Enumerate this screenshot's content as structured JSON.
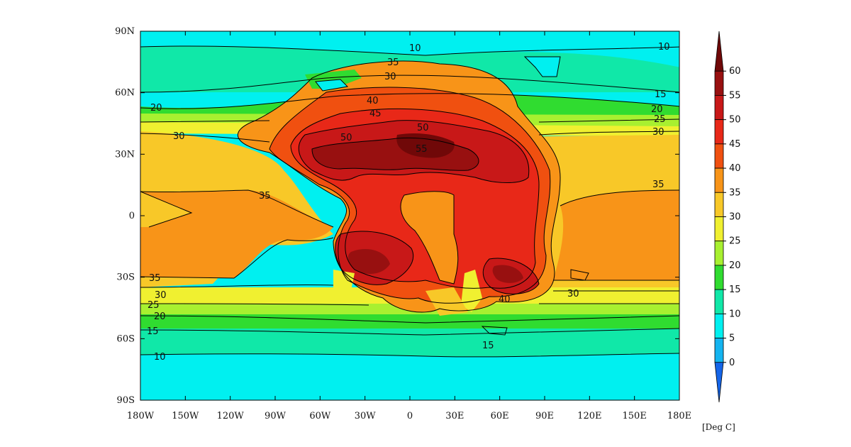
{
  "map": {
    "lat_labels": [
      "90N",
      "60N",
      "30N",
      "0",
      "30S",
      "60S",
      "90S"
    ],
    "lon_labels": [
      "180W",
      "150W",
      "120W",
      "90W",
      "60W",
      "30W",
      "0",
      "30E",
      "60E",
      "90E",
      "120E",
      "150E",
      "180E"
    ],
    "contour_labels": [
      "10",
      "10",
      "10",
      "15",
      "15",
      "15",
      "20",
      "20",
      "20",
      "25",
      "25",
      "30",
      "30",
      "30",
      "30",
      "30",
      "35",
      "35",
      "35",
      "40",
      "40",
      "45",
      "50",
      "50",
      "55",
      "35"
    ]
  },
  "colorbar": {
    "levels": [
      "0",
      "5",
      "10",
      "15",
      "20",
      "25",
      "30",
      "35",
      "40",
      "45",
      "50",
      "55",
      "60"
    ],
    "colors": [
      "#1565e8",
      "#14b4f0",
      "#00f0f0",
      "#10e8a8",
      "#30dc30",
      "#a8f030",
      "#f0f030",
      "#f8c828",
      "#f89418",
      "#f05010",
      "#e82818",
      "#c81818",
      "#981010",
      "#700808"
    ],
    "units": "[Deg C]"
  }
}
